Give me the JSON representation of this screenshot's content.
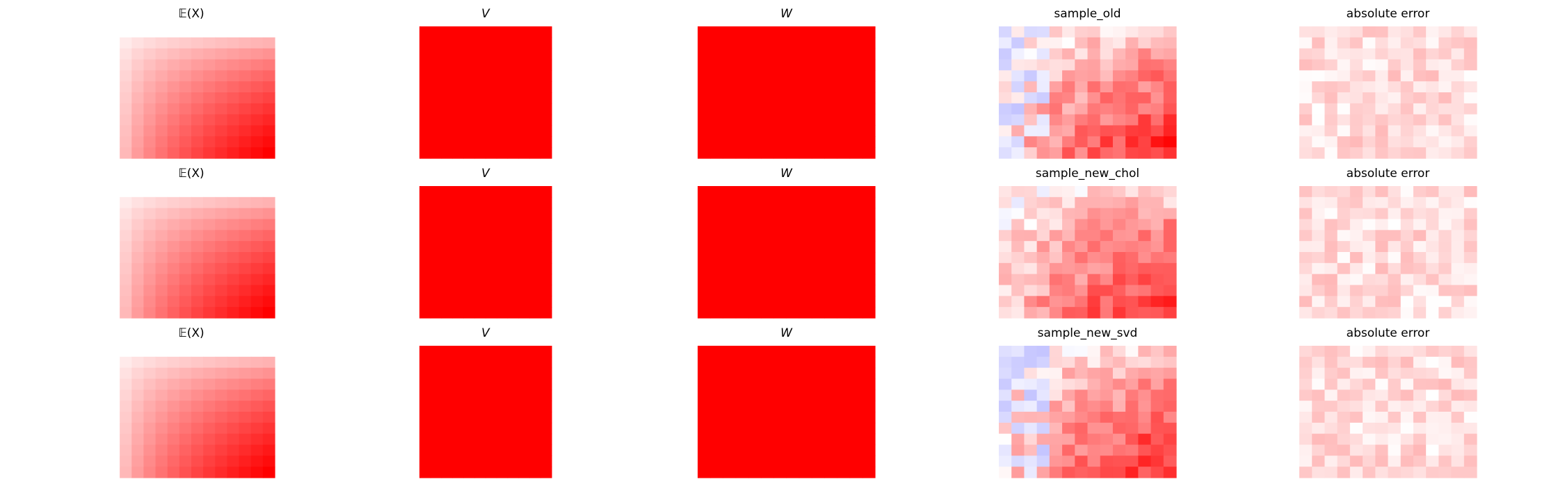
{
  "figure": {
    "background": "#ffffff",
    "colormap": "bwr",
    "colors": {
      "low": "#0000ff",
      "mid": "#ffffff",
      "high": "#ff0000"
    }
  },
  "chart_data": [
    {
      "type": "heatmap",
      "title": "𝔼(X)",
      "rows": 12,
      "cols": 14,
      "pattern": "mean"
    },
    {
      "type": "heatmap",
      "title": "V",
      "rows": 12,
      "cols": 12,
      "pattern": "uniform-max"
    },
    {
      "type": "heatmap",
      "title": "W",
      "rows": 12,
      "cols": 14,
      "pattern": "uniform-max"
    },
    {
      "type": "heatmap",
      "title": "sample_old",
      "rows": 12,
      "cols": 14,
      "pattern": "noisy-sample",
      "seed": 11,
      "negative_region": true
    },
    {
      "type": "heatmap",
      "title": "absolute error",
      "rows": 12,
      "cols": 14,
      "pattern": "noise",
      "seed": 21
    },
    {
      "type": "heatmap",
      "title": "𝔼(X)",
      "rows": 12,
      "cols": 14,
      "pattern": "mean"
    },
    {
      "type": "heatmap",
      "title": "V",
      "rows": 12,
      "cols": 12,
      "pattern": "uniform-max"
    },
    {
      "type": "heatmap",
      "title": "W",
      "rows": 12,
      "cols": 14,
      "pattern": "uniform-max"
    },
    {
      "type": "heatmap",
      "title": "sample_new_chol",
      "rows": 12,
      "cols": 14,
      "pattern": "noisy-sample",
      "seed": 31,
      "negative_region": false
    },
    {
      "type": "heatmap",
      "title": "absolute error",
      "rows": 12,
      "cols": 14,
      "pattern": "noise",
      "seed": 41
    },
    {
      "type": "heatmap",
      "title": "𝔼(X)",
      "rows": 12,
      "cols": 14,
      "pattern": "mean"
    },
    {
      "type": "heatmap",
      "title": "V",
      "rows": 12,
      "cols": 12,
      "pattern": "uniform-max"
    },
    {
      "type": "heatmap",
      "title": "W",
      "rows": 12,
      "cols": 14,
      "pattern": "uniform-max"
    },
    {
      "type": "heatmap",
      "title": "sample_new_svd",
      "rows": 12,
      "cols": 14,
      "pattern": "noisy-sample",
      "seed": 51,
      "negative_region": true
    },
    {
      "type": "heatmap",
      "title": "absolute error",
      "rows": 12,
      "cols": 14,
      "pattern": "noise",
      "seed": 61
    }
  ]
}
